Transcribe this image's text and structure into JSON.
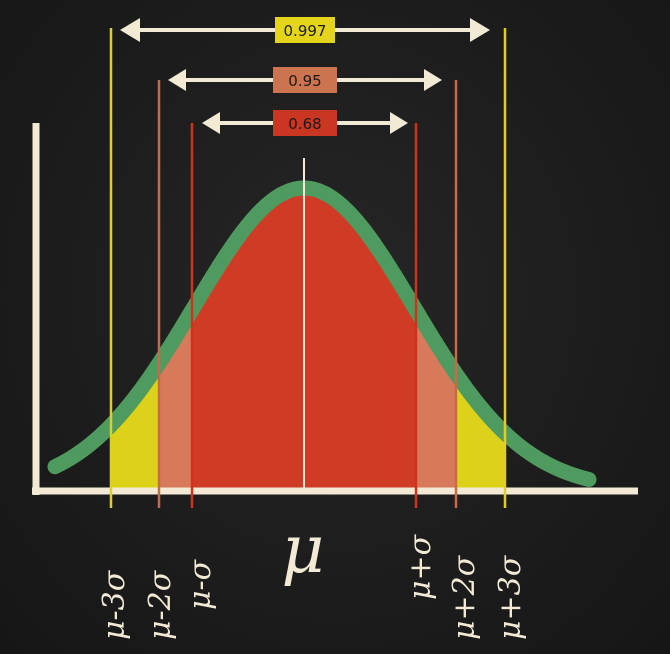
{
  "colors": {
    "background": "#1e1e1e",
    "chalk": "#f3ead6",
    "curve_outline": "#4f9a5e",
    "band_1sigma": "#cf3b25",
    "band_2sigma": "#d77a5c",
    "band_3sigma": "#ddd21a",
    "line_1sigma": "#d1321c",
    "line_2sigma": "#c86a46",
    "line_3sigma": "#e0cd2a",
    "label_1sigma": "#c93622",
    "label_2sigma": "#cc734f",
    "label_3sigma": "#e4d51b"
  },
  "intervals": [
    {
      "id": "three-sigma",
      "sigma": 3,
      "percentage_label": "0.997"
    },
    {
      "id": "two-sigma",
      "sigma": 2,
      "percentage_label": "0.95"
    },
    {
      "id": "one-sigma",
      "sigma": 1,
      "percentage_label": "0.68"
    }
  ],
  "axis_labels": {
    "minus_3": "μ-3σ",
    "minus_2": "μ-2σ",
    "minus_1": "μ-σ",
    "mean": "μ",
    "plus_1": "μ+σ",
    "plus_2": "μ+2σ",
    "plus_3": "μ+3σ"
  }
}
